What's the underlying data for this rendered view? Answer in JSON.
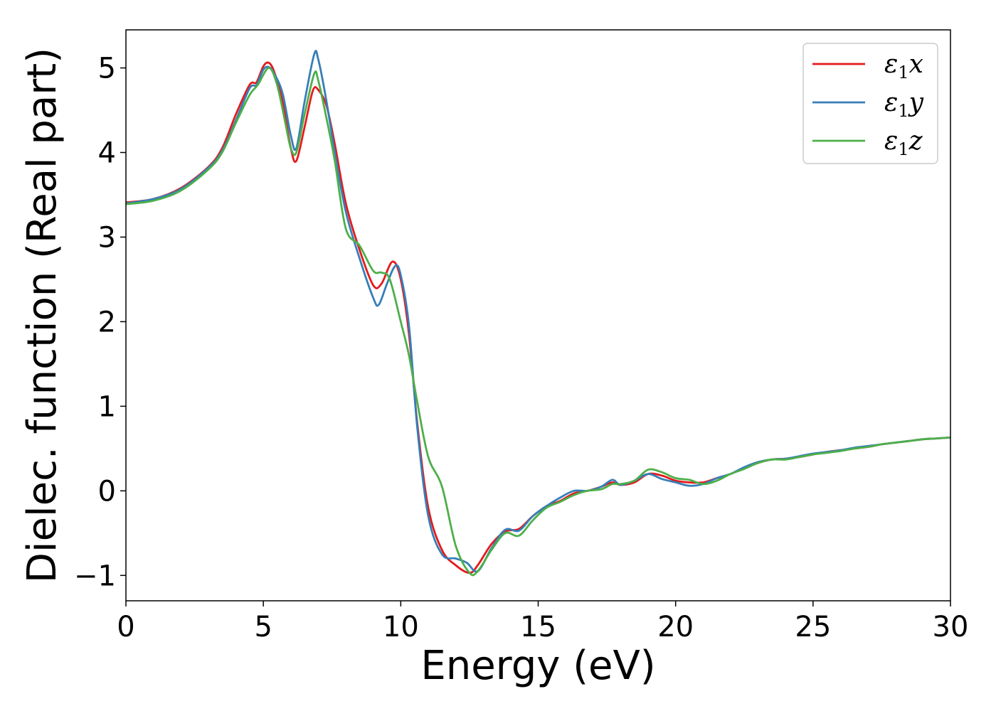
{
  "chart_data": {
    "type": "line",
    "xlabel": "Energy (eV)",
    "ylabel": "Dielec. function (Real part)",
    "xlim": [
      0,
      30
    ],
    "ylim": [
      -1.3,
      5.45
    ],
    "xticks": [
      0,
      5,
      10,
      15,
      20,
      25,
      30
    ],
    "yticks": [
      -1,
      0,
      1,
      2,
      3,
      4,
      5
    ],
    "xtick_labels": [
      "0",
      "5",
      "10",
      "15",
      "20",
      "25",
      "30"
    ],
    "ytick_labels": [
      "−1",
      "0",
      "1",
      "2",
      "3",
      "4",
      "5"
    ],
    "grid": false,
    "legend_position": "top-right",
    "series": [
      {
        "name": "ε₁x",
        "label_base": "ε",
        "label_sub": "1",
        "label_var": "x",
        "color": "#e41a1c",
        "x": [
          0,
          1,
          2,
          3,
          3.5,
          4,
          4.5,
          4.75,
          5,
          5.2,
          5.4,
          5.7,
          6,
          6.2,
          6.5,
          6.8,
          7,
          7.3,
          7.6,
          8,
          8.5,
          9,
          9.3,
          9.7,
          10,
          10.3,
          10.6,
          11,
          11.5,
          12,
          12.5,
          12.8,
          13.3,
          13.8,
          14.3,
          14.8,
          15.3,
          15.8,
          16.3,
          16.8,
          17.3,
          17.7,
          18,
          18.5,
          19,
          19.5,
          20,
          20.5,
          21,
          21.5,
          22,
          22.5,
          23,
          23.5,
          24,
          24.5,
          25,
          25.5,
          26,
          26.5,
          27,
          27.5,
          28,
          28.5,
          29,
          29.5,
          30
        ],
        "y": [
          3.41,
          3.45,
          3.58,
          3.83,
          4.05,
          4.45,
          4.8,
          4.83,
          5.02,
          5.06,
          4.95,
          4.6,
          4.05,
          3.9,
          4.3,
          4.73,
          4.74,
          4.55,
          4.1,
          3.4,
          2.85,
          2.43,
          2.45,
          2.71,
          2.5,
          1.85,
          0.8,
          -0.2,
          -0.7,
          -0.88,
          -0.97,
          -0.88,
          -0.63,
          -0.48,
          -0.45,
          -0.3,
          -0.18,
          -0.12,
          -0.03,
          0.0,
          0.05,
          0.1,
          0.07,
          0.1,
          0.2,
          0.18,
          0.12,
          0.1,
          0.1,
          0.15,
          0.2,
          0.27,
          0.33,
          0.37,
          0.38,
          0.4,
          0.43,
          0.46,
          0.48,
          0.5,
          0.52,
          0.55,
          0.57,
          0.59,
          0.61,
          0.62,
          0.63
        ]
      },
      {
        "name": "ε₁y",
        "label_base": "ε",
        "label_sub": "1",
        "label_var": "y",
        "color": "#377eb8",
        "x": [
          0,
          1,
          2,
          3,
          3.5,
          4,
          4.5,
          4.75,
          5,
          5.2,
          5.4,
          5.7,
          6,
          6.2,
          6.5,
          6.85,
          7,
          7.3,
          7.6,
          8,
          8.5,
          9,
          9.2,
          9.5,
          9.8,
          10,
          10.3,
          10.6,
          11,
          11.5,
          12,
          12.4,
          12.8,
          13.3,
          13.8,
          14.3,
          14.8,
          15.3,
          15.8,
          16.3,
          16.8,
          17.3,
          17.7,
          18,
          18.5,
          19,
          19.5,
          20,
          20.5,
          21,
          21.5,
          22,
          22.5,
          23,
          23.5,
          24,
          24.5,
          25,
          25.5,
          26,
          26.5,
          27,
          27.5,
          28,
          28.5,
          29,
          29.5,
          30
        ],
        "y": [
          3.4,
          3.45,
          3.57,
          3.82,
          4.02,
          4.38,
          4.76,
          4.8,
          4.98,
          5.01,
          4.93,
          4.7,
          4.2,
          4.05,
          4.6,
          5.16,
          5.1,
          4.6,
          4.0,
          3.3,
          2.75,
          2.28,
          2.2,
          2.45,
          2.66,
          2.55,
          1.95,
          0.75,
          -0.3,
          -0.75,
          -0.8,
          -0.85,
          -0.95,
          -0.68,
          -0.46,
          -0.47,
          -0.3,
          -0.18,
          -0.08,
          0.0,
          0.0,
          0.05,
          0.13,
          0.07,
          0.12,
          0.2,
          0.14,
          0.1,
          0.06,
          0.08,
          0.15,
          0.2,
          0.28,
          0.34,
          0.37,
          0.38,
          0.41,
          0.44,
          0.46,
          0.48,
          0.51,
          0.53,
          0.55,
          0.57,
          0.59,
          0.61,
          0.62,
          0.63
        ]
      },
      {
        "name": "ε₁z",
        "label_base": "ε",
        "label_sub": "1",
        "label_var": "z",
        "color": "#4daf4a",
        "x": [
          0,
          1,
          2,
          3,
          3.5,
          4,
          4.5,
          4.8,
          5.2,
          5.5,
          5.8,
          6,
          6.2,
          6.5,
          6.85,
          7,
          7.3,
          7.6,
          8,
          8.5,
          9,
          9.3,
          9.6,
          10,
          10.3,
          10.6,
          11,
          11.5,
          12,
          12.5,
          12.8,
          13.3,
          13.8,
          14.3,
          14.8,
          15.3,
          15.8,
          16.3,
          16.8,
          17.3,
          17.7,
          18,
          18.5,
          19,
          19.5,
          20,
          20.5,
          21,
          21.5,
          22,
          22.5,
          23,
          23.5,
          24,
          24.5,
          25,
          25.5,
          26,
          26.5,
          27,
          27.5,
          28,
          28.5,
          29,
          29.5,
          30
        ],
        "y": [
          3.39,
          3.43,
          3.55,
          3.8,
          4.0,
          4.35,
          4.68,
          4.8,
          5.0,
          4.8,
          4.35,
          4.05,
          4.0,
          4.45,
          4.93,
          4.85,
          4.4,
          3.9,
          3.1,
          2.9,
          2.6,
          2.58,
          2.5,
          2.0,
          1.6,
          1.05,
          0.4,
          0.05,
          -0.65,
          -0.97,
          -0.95,
          -0.7,
          -0.5,
          -0.53,
          -0.35,
          -0.2,
          -0.13,
          -0.05,
          0.0,
          0.02,
          0.08,
          0.08,
          0.12,
          0.25,
          0.22,
          0.15,
          0.13,
          0.08,
          0.12,
          0.2,
          0.26,
          0.33,
          0.37,
          0.37,
          0.4,
          0.43,
          0.45,
          0.47,
          0.5,
          0.52,
          0.55,
          0.57,
          0.59,
          0.61,
          0.62,
          0.63
        ]
      }
    ]
  }
}
